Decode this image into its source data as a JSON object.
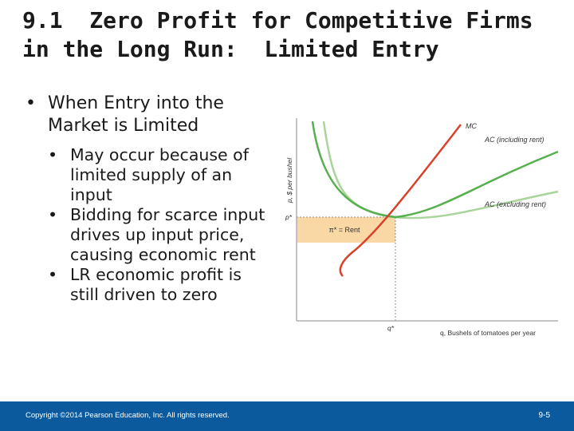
{
  "slide": {
    "title_lines": [
      "9.1  Zero Profit for Competitive Firms",
      "in the Long Run:  Limited Entry"
    ],
    "bullet": "When Entry into the Market is Limited",
    "sub_bullets": [
      "May occur because of limited supply of an input",
      "Bidding for scarce input drives up input price, causing economic rent",
      "LR economic profit is still driven to zero"
    ]
  },
  "chart_data": {
    "type": "line",
    "ylabel": "p, $ per bushel",
    "xlabel": "q, Bushels of tomatoes per year",
    "y_tick": "p*",
    "x_tick": "q*",
    "series": [
      {
        "name": "MC",
        "color": "#d9412b"
      },
      {
        "name": "AC (including rent)",
        "color": "#56b04e"
      },
      {
        "name": "AC (excluding rent)",
        "color": "#a9d49b"
      }
    ],
    "shaded_label": "π* = Rent",
    "shaded_color": "#f9d8a6"
  },
  "footer": {
    "copyright": "Copyright ©2014 Pearson Education, Inc. All rights reserved.",
    "page": "9-5"
  }
}
